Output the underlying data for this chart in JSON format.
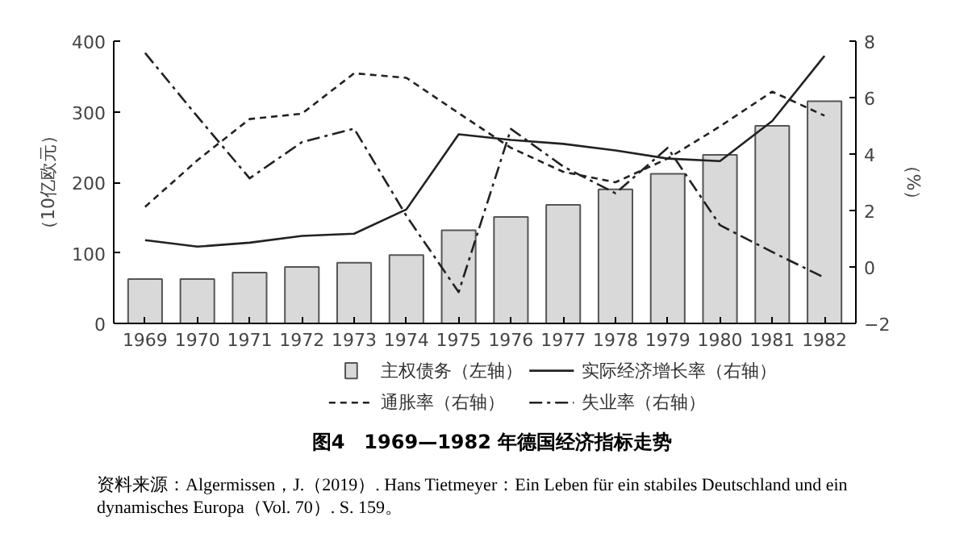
{
  "chart_data": {
    "type": "bar",
    "title": "图4　1969—1982 年德国经济指标走势",
    "categories": [
      "1969",
      "1970",
      "1971",
      "1972",
      "1973",
      "1974",
      "1975",
      "1976",
      "1977",
      "1978",
      "1979",
      "1980",
      "1981",
      "1982"
    ],
    "series": [
      {
        "name": "主权债务（左轴）",
        "color": "#d9d9d9",
        "axis": "y",
        "values": [
          63,
          63,
          72,
          80,
          86,
          97,
          132,
          151,
          168,
          190,
          212,
          239,
          280,
          315
        ]
      },
      {
        "name": "实际经济增长率（右轴）",
        "type": "line",
        "color": "#222222",
        "axis": "y2",
        "line_style": "solid",
        "values": [
          0.95,
          0.72,
          0.86,
          1.1,
          1.18,
          2.04,
          4.7,
          4.5,
          4.36,
          4.13,
          3.84,
          3.75,
          5.17,
          7.48
        ]
      },
      {
        "name": "通胀率（右轴）",
        "type": "line",
        "color": "#222222",
        "axis": "y2",
        "line_style": "dashed",
        "values": [
          2.13,
          3.78,
          5.24,
          5.43,
          6.86,
          6.7,
          5.45,
          4.22,
          3.37,
          3.0,
          3.84,
          4.98,
          6.21,
          5.36
        ]
      },
      {
        "name": "失业率（右轴）",
        "type": "line",
        "color": "#222222",
        "axis": "y2",
        "line_style": "dashdot",
        "values": [
          7.58,
          5.33,
          3.14,
          4.42,
          4.9,
          1.81,
          -0.89,
          4.89,
          3.56,
          2.61,
          4.22,
          1.48,
          0.53,
          -0.38
        ]
      }
    ],
    "ylabel": "（10亿欧元）",
    "y2label": "（%）",
    "ylim": [
      0,
      400
    ],
    "yticks": [
      0,
      100,
      200,
      300,
      400
    ],
    "y2lim": [
      -2,
      8
    ],
    "y2ticks": [
      -2,
      0,
      2,
      4,
      6,
      8
    ],
    "grid": false,
    "legend": "bottom",
    "annotations": [
      "资料来源：Algermissen，J.（2019）. Hans Tietmeyer：Ein Leben für ein stabiles Deutschland und ein dynamisches Europa（Vol. 70）. S. 159。"
    ]
  }
}
